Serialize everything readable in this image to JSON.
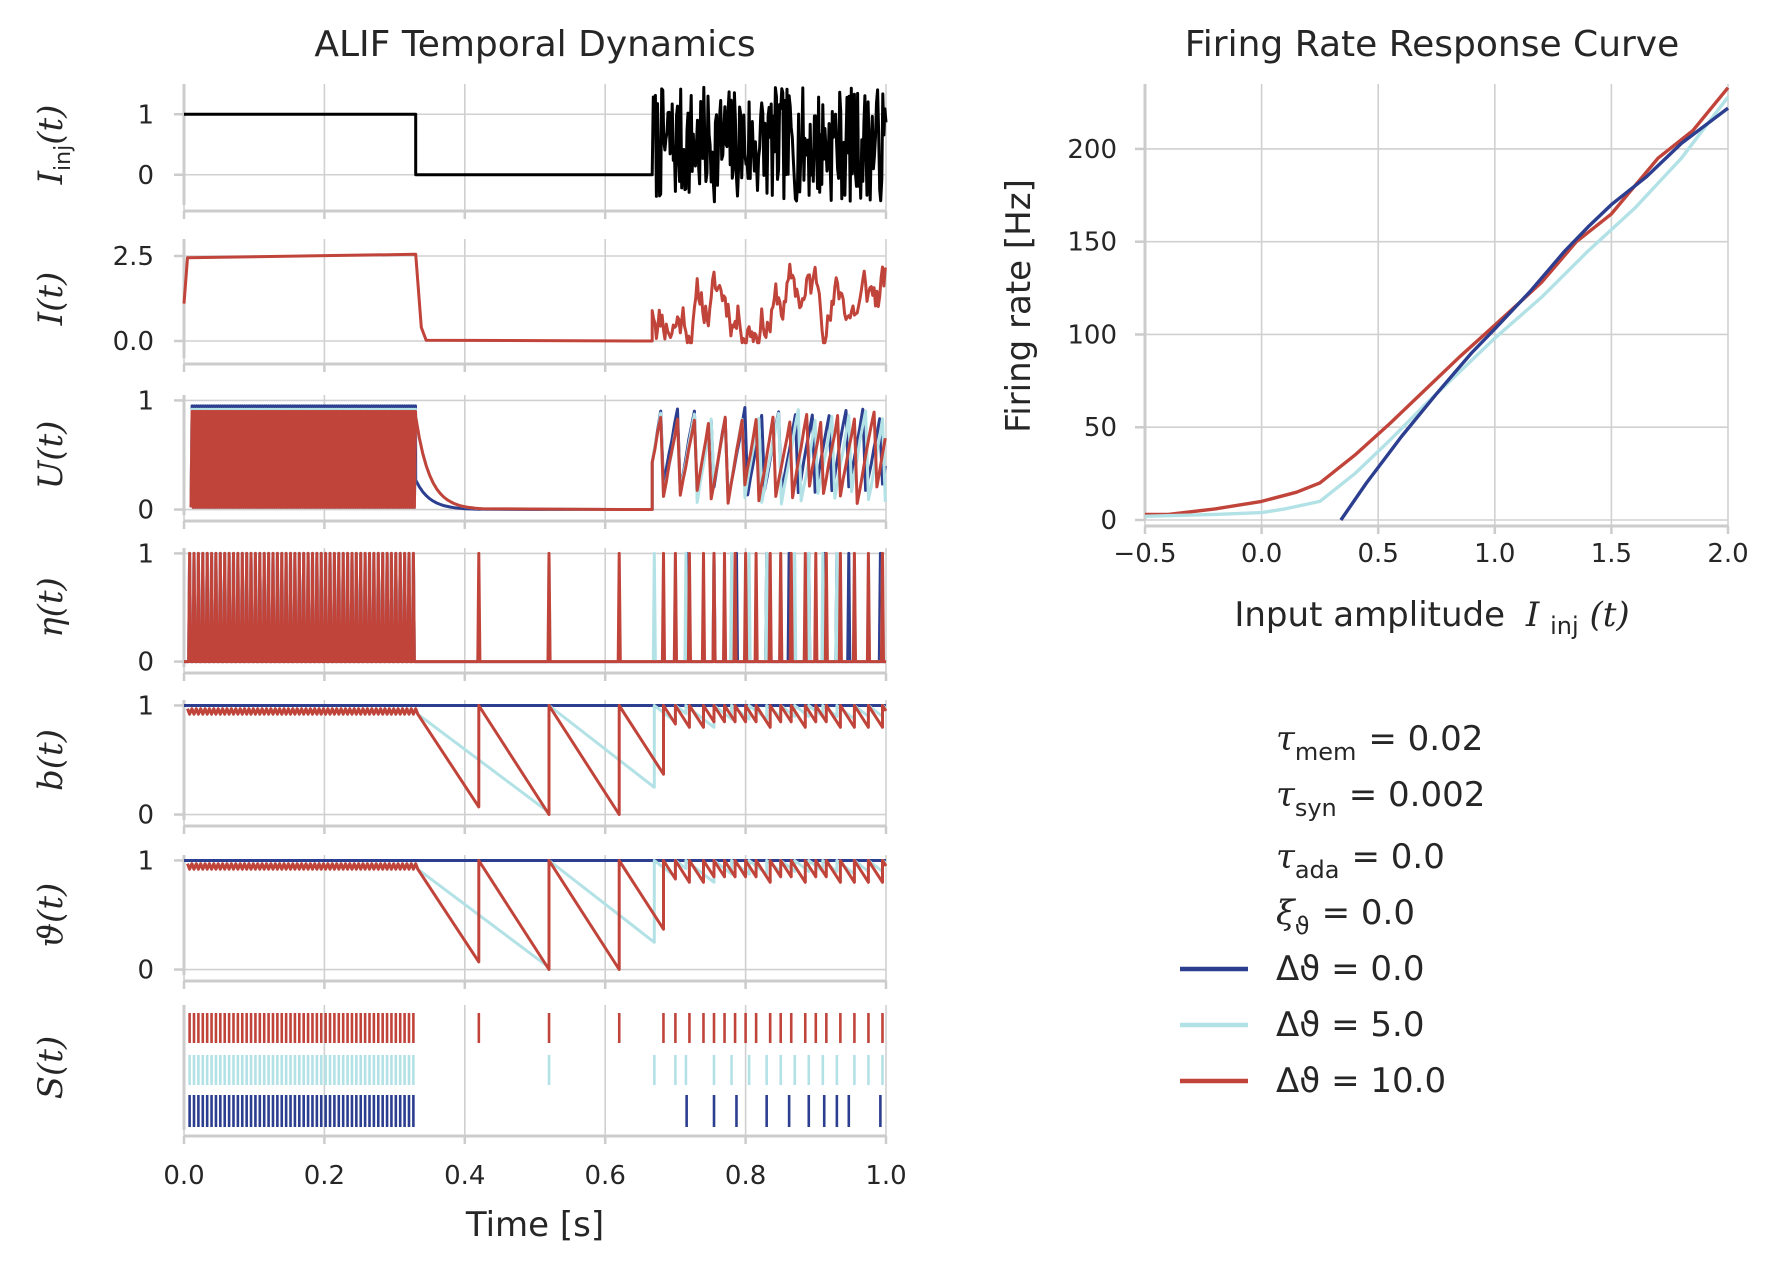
{
  "colors": {
    "dtheta_0": "#2c3e8f",
    "dtheta_5": "#b3e2e6",
    "dtheta_10": "#c1443b",
    "input": "#000000"
  },
  "chart_data": [
    {
      "type": "line",
      "title": "ALIF Temporal Dynamics",
      "xlabel": "Time [s]",
      "xlim": [
        0.0,
        1.0
      ],
      "xticks": [
        "0.0",
        "0.2",
        "0.4",
        "0.6",
        "0.8",
        "1.0"
      ],
      "grid": true,
      "panels": [
        {
          "key": "I_inj",
          "ylabel_base": "I",
          "ylabel_sub": "inj",
          "ylabel_arg": "(t)",
          "ylim": [
            -0.5,
            1.5
          ],
          "yticks": [
            {
              "v": 1,
              "t": "1"
            },
            {
              "v": 0,
              "t": "0"
            }
          ]
        },
        {
          "key": "I",
          "ylabel_base": "I",
          "ylabel_sub": "",
          "ylabel_arg": "(t)",
          "ylim": [
            -0.5,
            3.0
          ],
          "yticks": [
            {
              "v": 2.5,
              "t": "2.5"
            },
            {
              "v": 0.0,
              "t": "0.0"
            }
          ]
        },
        {
          "key": "U",
          "ylabel_base": "U",
          "ylabel_sub": "",
          "ylabel_arg": "(t)",
          "ylim": [
            -0.05,
            1.05
          ],
          "yticks": [
            {
              "v": 1,
              "t": "1"
            },
            {
              "v": 0,
              "t": "0"
            }
          ]
        },
        {
          "key": "eta",
          "ylabel_base": "η",
          "ylabel_sub": "",
          "ylabel_arg": "(t)",
          "ylim": [
            -0.05,
            1.05
          ],
          "yticks": [
            {
              "v": 1,
              "t": "1"
            },
            {
              "v": 0,
              "t": "0"
            }
          ]
        },
        {
          "key": "b",
          "ylabel_base": "b",
          "ylabel_sub": "",
          "ylabel_arg": "(t)",
          "ylim": [
            -0.05,
            1.05
          ],
          "yticks": [
            {
              "v": 1,
              "t": "1"
            },
            {
              "v": 0,
              "t": "0"
            }
          ]
        },
        {
          "key": "theta",
          "ylabel_base": "ϑ",
          "ylabel_sub": "",
          "ylabel_arg": "(t)",
          "ylim": [
            -0.05,
            1.05
          ],
          "yticks": [
            {
              "v": 1,
              "t": "1"
            },
            {
              "v": 0,
              "t": "0"
            }
          ]
        },
        {
          "key": "S",
          "ylabel_base": "S",
          "ylabel_sub": "",
          "ylabel_arg": "(t)",
          "ylim": [
            0,
            1
          ],
          "yticks": []
        }
      ],
      "input_protocol": {
        "step_on": [
          0.0,
          0.33,
          1.0
        ],
        "silent": [
          0.33,
          0.667,
          0.0
        ],
        "noise_start": 0.667,
        "noise_range": [
          -0.45,
          1.45
        ]
      },
      "spike_times": {
        "dtheta_10": [
          0.42,
          0.52,
          0.62,
          0.683,
          0.7,
          0.72,
          0.74,
          0.755,
          0.77,
          0.785,
          0.8,
          0.815,
          0.835,
          0.85,
          0.865,
          0.885,
          0.9,
          0.915,
          0.935,
          0.955,
          0.975,
          0.995
        ],
        "dtheta_5": [
          0.52,
          0.67,
          0.7,
          0.715,
          0.755,
          0.78,
          0.805,
          0.83,
          0.85,
          0.87,
          0.89,
          0.91,
          0.93,
          0.955,
          0.975,
          0.995
        ],
        "dtheta_0": [
          0.716,
          0.755,
          0.787,
          0.83,
          0.862,
          0.89,
          0.912,
          0.93,
          0.947,
          0.992
        ]
      },
      "early_spike_rate_hz": 160,
      "early_spike_window": [
        0.008,
        0.33
      ]
    },
    {
      "type": "line",
      "title": "Firing Rate Response Curve",
      "xlabel": "Input amplitude",
      "xlabel_math_base": "I",
      "xlabel_math_sub": "inj",
      "xlabel_math_arg": "(t)",
      "ylabel": "Firing rate [Hz]",
      "xlim": [
        -0.5,
        2.0
      ],
      "ylim": [
        0,
        235
      ],
      "xticks": [
        {
          "v": -0.5,
          "t": "−0.5"
        },
        {
          "v": 0.0,
          "t": "0.0"
        },
        {
          "v": 0.5,
          "t": "0.5"
        },
        {
          "v": 1.0,
          "t": "1.0"
        },
        {
          "v": 1.5,
          "t": "1.5"
        },
        {
          "v": 2.0,
          "t": "2.0"
        }
      ],
      "yticks": [
        {
          "v": 0,
          "t": "0"
        },
        {
          "v": 50,
          "t": "50"
        },
        {
          "v": 100,
          "t": "100"
        },
        {
          "v": 150,
          "t": "150"
        },
        {
          "v": 200,
          "t": "200"
        }
      ],
      "grid": true,
      "series": [
        {
          "key": "dtheta_0",
          "x": [
            0.34,
            0.45,
            0.6,
            0.75,
            0.9,
            1.0,
            1.15,
            1.3,
            1.4,
            1.5,
            1.65,
            1.8,
            2.0
          ],
          "y": [
            0,
            20,
            45,
            68,
            90,
            103,
            123,
            145,
            158,
            170,
            185,
            203,
            222
          ]
        },
        {
          "key": "dtheta_5",
          "x": [
            -0.5,
            -0.2,
            0.0,
            0.1,
            0.25,
            0.4,
            0.55,
            0.7,
            0.85,
            1.0,
            1.2,
            1.4,
            1.6,
            1.8,
            2.0
          ],
          "y": [
            2,
            3,
            4,
            6,
            10,
            25,
            43,
            62,
            80,
            98,
            120,
            145,
            168,
            195,
            228
          ]
        },
        {
          "key": "dtheta_10",
          "x": [
            -0.5,
            -0.4,
            -0.2,
            0.0,
            0.15,
            0.25,
            0.4,
            0.55,
            0.7,
            0.85,
            1.0,
            1.2,
            1.35,
            1.5,
            1.7,
            1.85,
            2.0
          ],
          "y": [
            3,
            3,
            6,
            10,
            15,
            20,
            35,
            52,
            70,
            88,
            105,
            128,
            150,
            165,
            195,
            210,
            233
          ]
        }
      ]
    }
  ],
  "params": [
    {
      "sym": "τ",
      "sub": "mem",
      "value": "= 0.02"
    },
    {
      "sym": "τ",
      "sub": "syn",
      "value": "= 0.002"
    },
    {
      "sym": "τ",
      "sub": "ada",
      "value": "= 0.0"
    },
    {
      "sym": "ξ",
      "sub": "ϑ",
      "value": "= 0.0"
    }
  ],
  "legend": [
    {
      "key": "dtheta_0",
      "label": "Δϑ = 0.0"
    },
    {
      "key": "dtheta_5",
      "label": "Δϑ = 5.0"
    },
    {
      "key": "dtheta_10",
      "label": "Δϑ = 10.0"
    }
  ]
}
